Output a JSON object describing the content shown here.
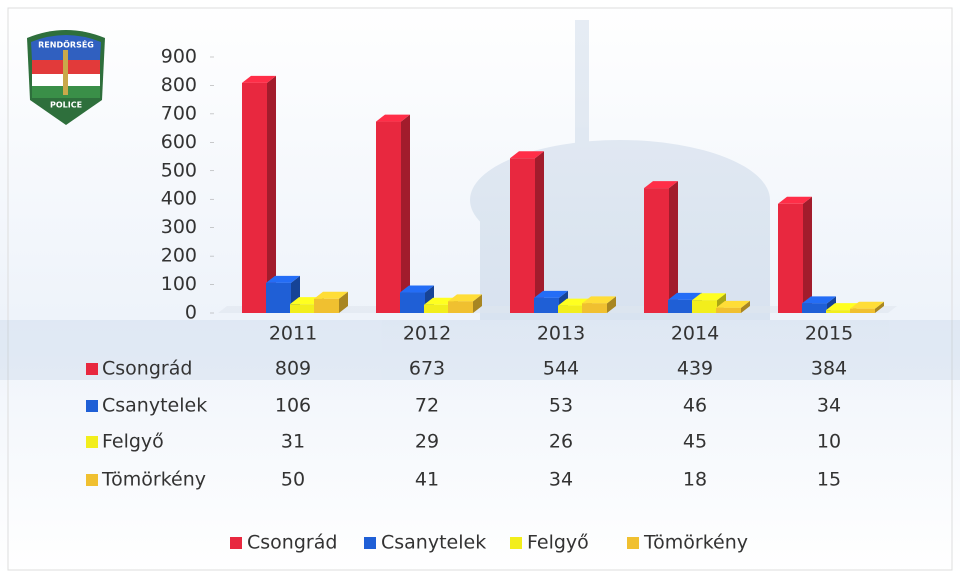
{
  "badge": {
    "top_text": "RENDŐRSÉG",
    "bottom_text": "POLICE"
  },
  "chart_data": {
    "type": "bar3d",
    "categories": [
      "2011",
      "2012",
      "2013",
      "2014",
      "2015"
    ],
    "series": [
      {
        "name": "Csongrád",
        "color": "#e8283f",
        "values": [
          809,
          673,
          544,
          439,
          384
        ]
      },
      {
        "name": "Csanytelek",
        "color": "#1f5fd6",
        "values": [
          106,
          72,
          53,
          46,
          34
        ]
      },
      {
        "name": "Felgyő",
        "color": "#f2ee1c",
        "values": [
          31,
          29,
          26,
          45,
          10
        ]
      },
      {
        "name": "Tömörkény",
        "color": "#f0c030",
        "values": [
          50,
          41,
          34,
          18,
          15
        ]
      }
    ],
    "ylim": [
      0,
      900
    ],
    "yticks": [
      0,
      100,
      200,
      300,
      400,
      500,
      600,
      700,
      800,
      900
    ],
    "grid": false,
    "legend": "bottom",
    "data_table": true
  }
}
